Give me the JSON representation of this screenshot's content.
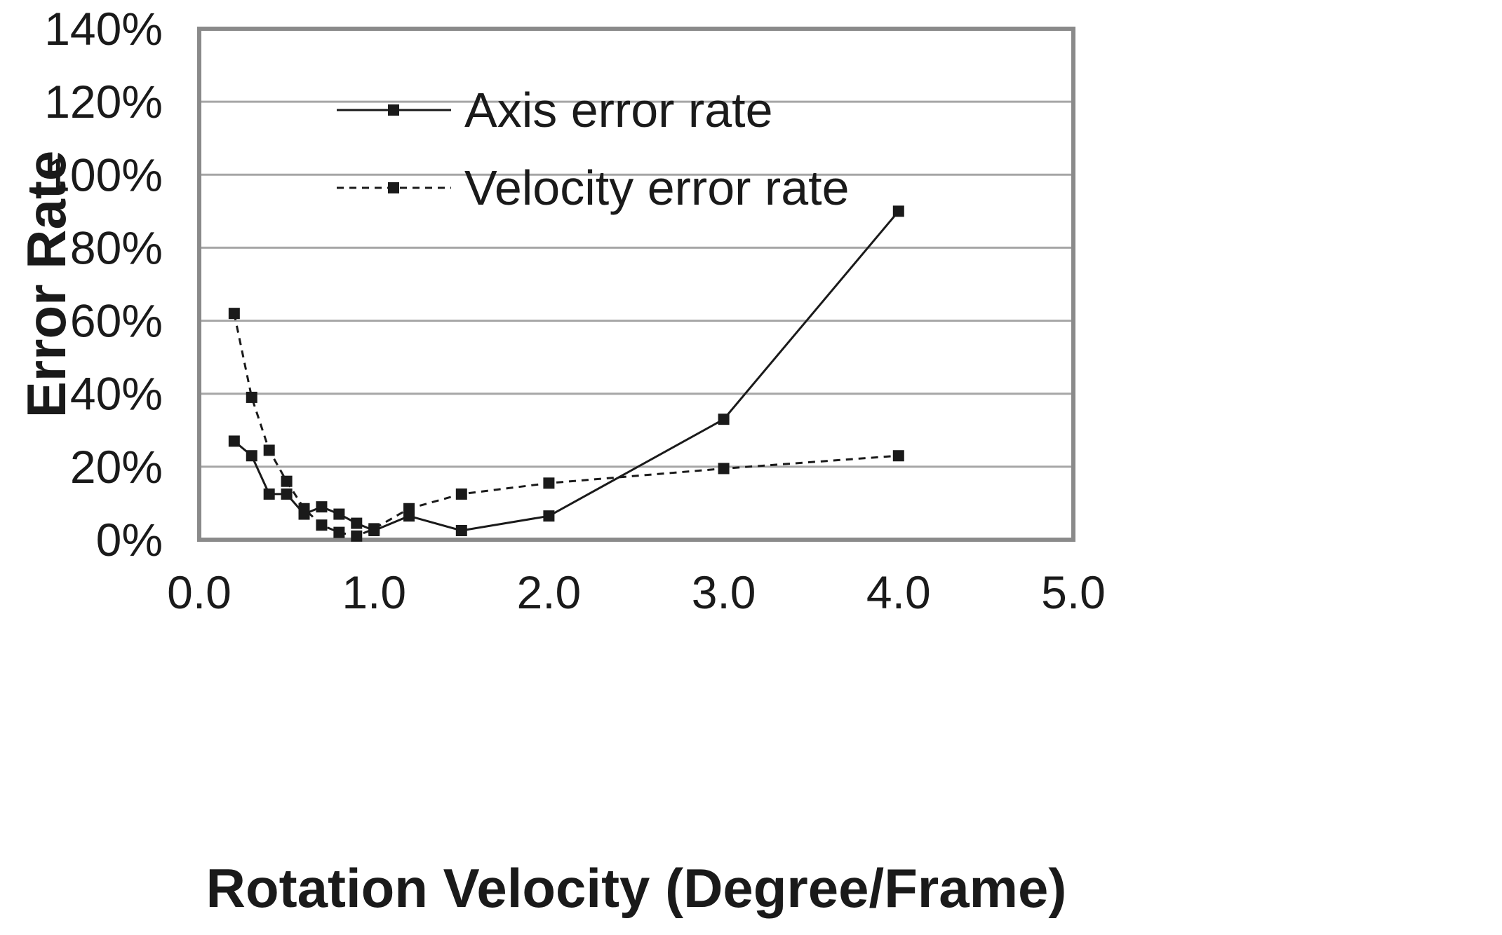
{
  "chart_data": {
    "type": "line",
    "title": "",
    "xlabel": "Rotation Velocity (Degree/Frame)",
    "ylabel": "Error Rate",
    "xlim": [
      0,
      5
    ],
    "ylim": [
      0,
      1.4
    ],
    "x_ticks": [
      "0.0",
      "1.0",
      "2.0",
      "3.0",
      "4.0",
      "5.0"
    ],
    "x_tick_values": [
      0,
      1,
      2,
      3,
      4,
      5
    ],
    "y_ticks": [
      "0%",
      "20%",
      "40%",
      "60%",
      "80%",
      "100%",
      "120%",
      "140%"
    ],
    "y_tick_values": [
      0,
      0.2,
      0.4,
      0.6,
      0.8,
      1.0,
      1.2,
      1.4
    ],
    "grid": "horizontal",
    "legend_position": "top-left",
    "series": [
      {
        "name": "Axis error rate",
        "style": "solid",
        "marker": "square",
        "color": "#1a1a1a",
        "x": [
          0.2,
          0.3,
          0.4,
          0.5,
          0.6,
          0.7,
          0.8,
          0.9,
          1.0,
          1.2,
          1.5,
          2.0,
          3.0,
          4.0
        ],
        "values": [
          0.27,
          0.23,
          0.125,
          0.125,
          0.07,
          0.09,
          0.07,
          0.045,
          0.025,
          0.065,
          0.025,
          0.065,
          0.33,
          0.9
        ]
      },
      {
        "name": "Velocity error rate",
        "style": "dashed",
        "marker": "square",
        "color": "#1a1a1a",
        "x": [
          0.2,
          0.3,
          0.4,
          0.5,
          0.6,
          0.7,
          0.8,
          0.9,
          1.0,
          1.2,
          1.5,
          2.0,
          3.0,
          4.0
        ],
        "values": [
          0.62,
          0.39,
          0.245,
          0.16,
          0.085,
          0.04,
          0.02,
          0.01,
          0.03,
          0.085,
          0.125,
          0.155,
          0.195,
          0.23
        ]
      }
    ]
  }
}
